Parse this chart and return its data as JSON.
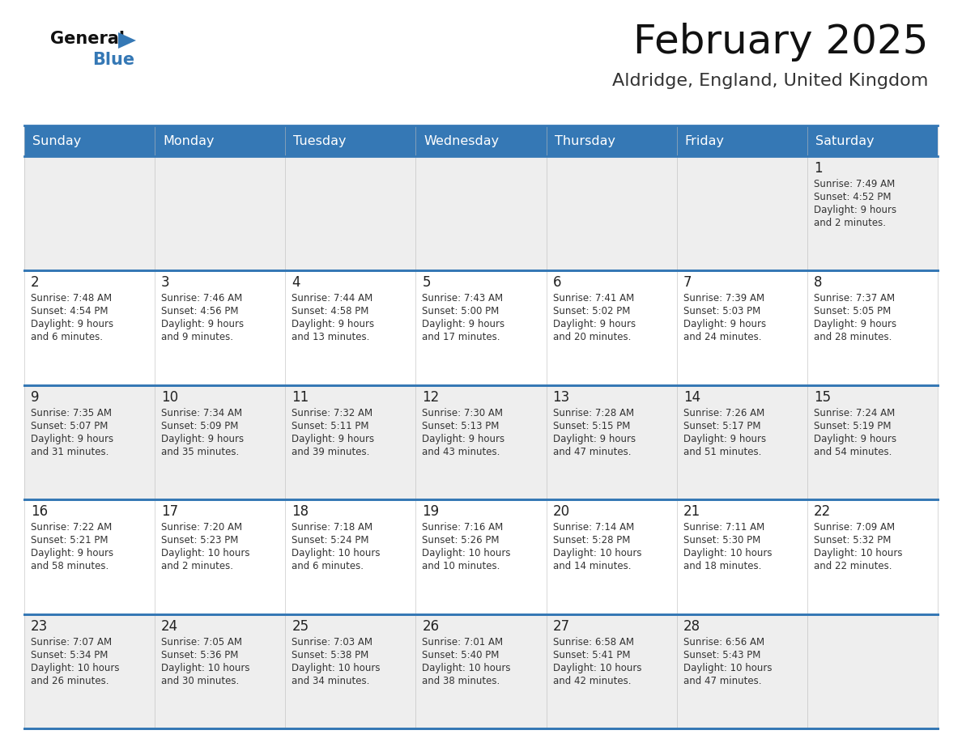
{
  "title": "February 2025",
  "subtitle": "Aldridge, England, United Kingdom",
  "header_color": "#3578b5",
  "header_text_color": "#ffffff",
  "row0_bg": "#eeeeee",
  "row1_bg": "#ffffff",
  "row2_bg": "#eeeeee",
  "row3_bg": "#ffffff",
  "row4_bg": "#eeeeee",
  "day_number_color": "#222222",
  "text_color": "#333333",
  "border_color": "#3578b5",
  "weekdays": [
    "Sunday",
    "Monday",
    "Tuesday",
    "Wednesday",
    "Thursday",
    "Friday",
    "Saturday"
  ],
  "logo_text1": "General",
  "logo_text2": "Blue",
  "logo_color1": "#111111",
  "logo_color2": "#3578b5",
  "title_color": "#111111",
  "subtitle_color": "#333333",
  "days": [
    {
      "day": 1,
      "col": 6,
      "row": 0,
      "sunrise": "7:49 AM",
      "sunset": "4:52 PM",
      "daylight_h": "9",
      "daylight_m": "2"
    },
    {
      "day": 2,
      "col": 0,
      "row": 1,
      "sunrise": "7:48 AM",
      "sunset": "4:54 PM",
      "daylight_h": "9",
      "daylight_m": "6"
    },
    {
      "day": 3,
      "col": 1,
      "row": 1,
      "sunrise": "7:46 AM",
      "sunset": "4:56 PM",
      "daylight_h": "9",
      "daylight_m": "9"
    },
    {
      "day": 4,
      "col": 2,
      "row": 1,
      "sunrise": "7:44 AM",
      "sunset": "4:58 PM",
      "daylight_h": "9",
      "daylight_m": "13"
    },
    {
      "day": 5,
      "col": 3,
      "row": 1,
      "sunrise": "7:43 AM",
      "sunset": "5:00 PM",
      "daylight_h": "9",
      "daylight_m": "17"
    },
    {
      "day": 6,
      "col": 4,
      "row": 1,
      "sunrise": "7:41 AM",
      "sunset": "5:02 PM",
      "daylight_h": "9",
      "daylight_m": "20"
    },
    {
      "day": 7,
      "col": 5,
      "row": 1,
      "sunrise": "7:39 AM",
      "sunset": "5:03 PM",
      "daylight_h": "9",
      "daylight_m": "24"
    },
    {
      "day": 8,
      "col": 6,
      "row": 1,
      "sunrise": "7:37 AM",
      "sunset": "5:05 PM",
      "daylight_h": "9",
      "daylight_m": "28"
    },
    {
      "day": 9,
      "col": 0,
      "row": 2,
      "sunrise": "7:35 AM",
      "sunset": "5:07 PM",
      "daylight_h": "9",
      "daylight_m": "31"
    },
    {
      "day": 10,
      "col": 1,
      "row": 2,
      "sunrise": "7:34 AM",
      "sunset": "5:09 PM",
      "daylight_h": "9",
      "daylight_m": "35"
    },
    {
      "day": 11,
      "col": 2,
      "row": 2,
      "sunrise": "7:32 AM",
      "sunset": "5:11 PM",
      "daylight_h": "9",
      "daylight_m": "39"
    },
    {
      "day": 12,
      "col": 3,
      "row": 2,
      "sunrise": "7:30 AM",
      "sunset": "5:13 PM",
      "daylight_h": "9",
      "daylight_m": "43"
    },
    {
      "day": 13,
      "col": 4,
      "row": 2,
      "sunrise": "7:28 AM",
      "sunset": "5:15 PM",
      "daylight_h": "9",
      "daylight_m": "47"
    },
    {
      "day": 14,
      "col": 5,
      "row": 2,
      "sunrise": "7:26 AM",
      "sunset": "5:17 PM",
      "daylight_h": "9",
      "daylight_m": "51"
    },
    {
      "day": 15,
      "col": 6,
      "row": 2,
      "sunrise": "7:24 AM",
      "sunset": "5:19 PM",
      "daylight_h": "9",
      "daylight_m": "54"
    },
    {
      "day": 16,
      "col": 0,
      "row": 3,
      "sunrise": "7:22 AM",
      "sunset": "5:21 PM",
      "daylight_h": "9",
      "daylight_m": "58"
    },
    {
      "day": 17,
      "col": 1,
      "row": 3,
      "sunrise": "7:20 AM",
      "sunset": "5:23 PM",
      "daylight_h": "10",
      "daylight_m": "2"
    },
    {
      "day": 18,
      "col": 2,
      "row": 3,
      "sunrise": "7:18 AM",
      "sunset": "5:24 PM",
      "daylight_h": "10",
      "daylight_m": "6"
    },
    {
      "day": 19,
      "col": 3,
      "row": 3,
      "sunrise": "7:16 AM",
      "sunset": "5:26 PM",
      "daylight_h": "10",
      "daylight_m": "10"
    },
    {
      "day": 20,
      "col": 4,
      "row": 3,
      "sunrise": "7:14 AM",
      "sunset": "5:28 PM",
      "daylight_h": "10",
      "daylight_m": "14"
    },
    {
      "day": 21,
      "col": 5,
      "row": 3,
      "sunrise": "7:11 AM",
      "sunset": "5:30 PM",
      "daylight_h": "10",
      "daylight_m": "18"
    },
    {
      "day": 22,
      "col": 6,
      "row": 3,
      "sunrise": "7:09 AM",
      "sunset": "5:32 PM",
      "daylight_h": "10",
      "daylight_m": "22"
    },
    {
      "day": 23,
      "col": 0,
      "row": 4,
      "sunrise": "7:07 AM",
      "sunset": "5:34 PM",
      "daylight_h": "10",
      "daylight_m": "26"
    },
    {
      "day": 24,
      "col": 1,
      "row": 4,
      "sunrise": "7:05 AM",
      "sunset": "5:36 PM",
      "daylight_h": "10",
      "daylight_m": "30"
    },
    {
      "day": 25,
      "col": 2,
      "row": 4,
      "sunrise": "7:03 AM",
      "sunset": "5:38 PM",
      "daylight_h": "10",
      "daylight_m": "34"
    },
    {
      "day": 26,
      "col": 3,
      "row": 4,
      "sunrise": "7:01 AM",
      "sunset": "5:40 PM",
      "daylight_h": "10",
      "daylight_m": "38"
    },
    {
      "day": 27,
      "col": 4,
      "row": 4,
      "sunrise": "6:58 AM",
      "sunset": "5:41 PM",
      "daylight_h": "10",
      "daylight_m": "42"
    },
    {
      "day": 28,
      "col": 5,
      "row": 4,
      "sunrise": "6:56 AM",
      "sunset": "5:43 PM",
      "daylight_h": "10",
      "daylight_m": "47"
    }
  ]
}
